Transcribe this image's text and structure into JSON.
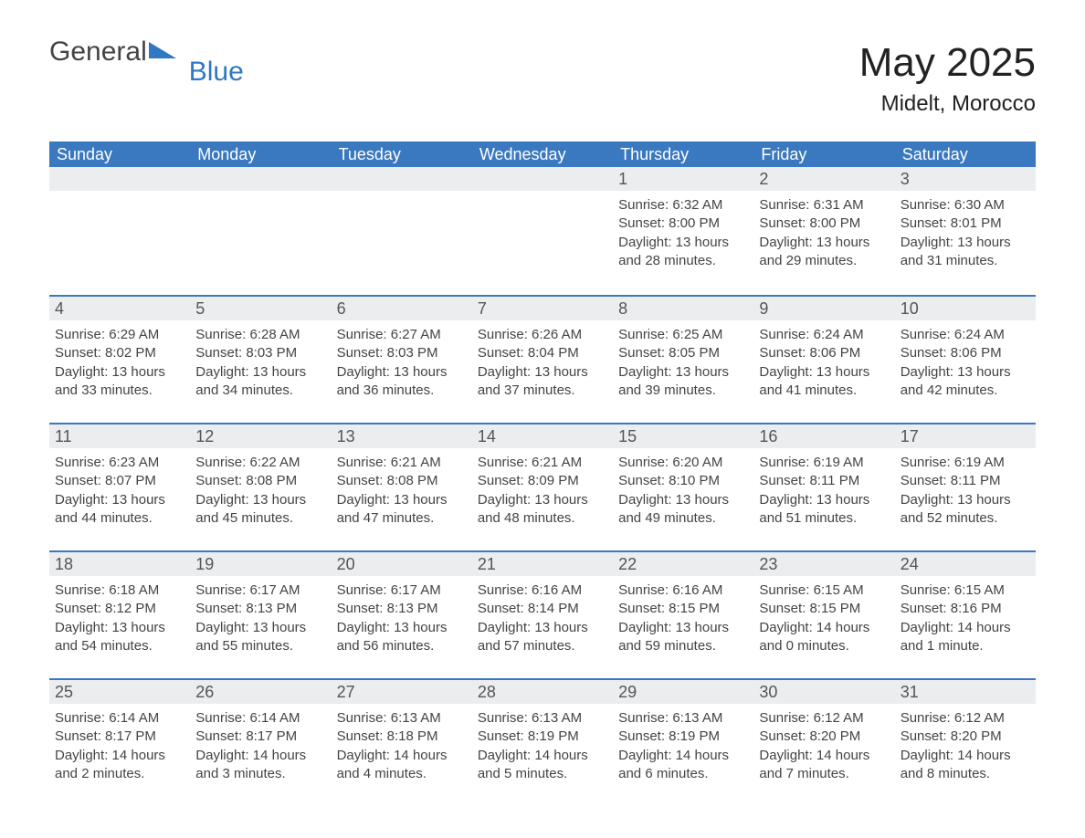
{
  "logo": {
    "part1": "General",
    "part2": "Blue",
    "color_brand": "#2f78c4"
  },
  "title": {
    "month": "May 2025",
    "location": "Midelt, Morocco"
  },
  "calendar": {
    "header_bg": "#3a78bf",
    "header_fg": "#ffffff",
    "row_border": "#3a78bf",
    "daybar_bg": "#ecedef",
    "text_color": "#444444",
    "days_of_week": [
      "Sunday",
      "Monday",
      "Tuesday",
      "Wednesday",
      "Thursday",
      "Friday",
      "Saturday"
    ],
    "weeks": [
      [
        {
          "pad": true
        },
        {
          "pad": true
        },
        {
          "pad": true
        },
        {
          "pad": true
        },
        {
          "num": "1",
          "sunrise": "Sunrise: 6:32 AM",
          "sunset": "Sunset: 8:00 PM",
          "daylight": "Daylight: 13 hours and 28 minutes."
        },
        {
          "num": "2",
          "sunrise": "Sunrise: 6:31 AM",
          "sunset": "Sunset: 8:00 PM",
          "daylight": "Daylight: 13 hours and 29 minutes."
        },
        {
          "num": "3",
          "sunrise": "Sunrise: 6:30 AM",
          "sunset": "Sunset: 8:01 PM",
          "daylight": "Daylight: 13 hours and 31 minutes."
        }
      ],
      [
        {
          "num": "4",
          "sunrise": "Sunrise: 6:29 AM",
          "sunset": "Sunset: 8:02 PM",
          "daylight": "Daylight: 13 hours and 33 minutes."
        },
        {
          "num": "5",
          "sunrise": "Sunrise: 6:28 AM",
          "sunset": "Sunset: 8:03 PM",
          "daylight": "Daylight: 13 hours and 34 minutes."
        },
        {
          "num": "6",
          "sunrise": "Sunrise: 6:27 AM",
          "sunset": "Sunset: 8:03 PM",
          "daylight": "Daylight: 13 hours and 36 minutes."
        },
        {
          "num": "7",
          "sunrise": "Sunrise: 6:26 AM",
          "sunset": "Sunset: 8:04 PM",
          "daylight": "Daylight: 13 hours and 37 minutes."
        },
        {
          "num": "8",
          "sunrise": "Sunrise: 6:25 AM",
          "sunset": "Sunset: 8:05 PM",
          "daylight": "Daylight: 13 hours and 39 minutes."
        },
        {
          "num": "9",
          "sunrise": "Sunrise: 6:24 AM",
          "sunset": "Sunset: 8:06 PM",
          "daylight": "Daylight: 13 hours and 41 minutes."
        },
        {
          "num": "10",
          "sunrise": "Sunrise: 6:24 AM",
          "sunset": "Sunset: 8:06 PM",
          "daylight": "Daylight: 13 hours and 42 minutes."
        }
      ],
      [
        {
          "num": "11",
          "sunrise": "Sunrise: 6:23 AM",
          "sunset": "Sunset: 8:07 PM",
          "daylight": "Daylight: 13 hours and 44 minutes."
        },
        {
          "num": "12",
          "sunrise": "Sunrise: 6:22 AM",
          "sunset": "Sunset: 8:08 PM",
          "daylight": "Daylight: 13 hours and 45 minutes."
        },
        {
          "num": "13",
          "sunrise": "Sunrise: 6:21 AM",
          "sunset": "Sunset: 8:08 PM",
          "daylight": "Daylight: 13 hours and 47 minutes."
        },
        {
          "num": "14",
          "sunrise": "Sunrise: 6:21 AM",
          "sunset": "Sunset: 8:09 PM",
          "daylight": "Daylight: 13 hours and 48 minutes."
        },
        {
          "num": "15",
          "sunrise": "Sunrise: 6:20 AM",
          "sunset": "Sunset: 8:10 PM",
          "daylight": "Daylight: 13 hours and 49 minutes."
        },
        {
          "num": "16",
          "sunrise": "Sunrise: 6:19 AM",
          "sunset": "Sunset: 8:11 PM",
          "daylight": "Daylight: 13 hours and 51 minutes."
        },
        {
          "num": "17",
          "sunrise": "Sunrise: 6:19 AM",
          "sunset": "Sunset: 8:11 PM",
          "daylight": "Daylight: 13 hours and 52 minutes."
        }
      ],
      [
        {
          "num": "18",
          "sunrise": "Sunrise: 6:18 AM",
          "sunset": "Sunset: 8:12 PM",
          "daylight": "Daylight: 13 hours and 54 minutes."
        },
        {
          "num": "19",
          "sunrise": "Sunrise: 6:17 AM",
          "sunset": "Sunset: 8:13 PM",
          "daylight": "Daylight: 13 hours and 55 minutes."
        },
        {
          "num": "20",
          "sunrise": "Sunrise: 6:17 AM",
          "sunset": "Sunset: 8:13 PM",
          "daylight": "Daylight: 13 hours and 56 minutes."
        },
        {
          "num": "21",
          "sunrise": "Sunrise: 6:16 AM",
          "sunset": "Sunset: 8:14 PM",
          "daylight": "Daylight: 13 hours and 57 minutes."
        },
        {
          "num": "22",
          "sunrise": "Sunrise: 6:16 AM",
          "sunset": "Sunset: 8:15 PM",
          "daylight": "Daylight: 13 hours and 59 minutes."
        },
        {
          "num": "23",
          "sunrise": "Sunrise: 6:15 AM",
          "sunset": "Sunset: 8:15 PM",
          "daylight": "Daylight: 14 hours and 0 minutes."
        },
        {
          "num": "24",
          "sunrise": "Sunrise: 6:15 AM",
          "sunset": "Sunset: 8:16 PM",
          "daylight": "Daylight: 14 hours and 1 minute."
        }
      ],
      [
        {
          "num": "25",
          "sunrise": "Sunrise: 6:14 AM",
          "sunset": "Sunset: 8:17 PM",
          "daylight": "Daylight: 14 hours and 2 minutes."
        },
        {
          "num": "26",
          "sunrise": "Sunrise: 6:14 AM",
          "sunset": "Sunset: 8:17 PM",
          "daylight": "Daylight: 14 hours and 3 minutes."
        },
        {
          "num": "27",
          "sunrise": "Sunrise: 6:13 AM",
          "sunset": "Sunset: 8:18 PM",
          "daylight": "Daylight: 14 hours and 4 minutes."
        },
        {
          "num": "28",
          "sunrise": "Sunrise: 6:13 AM",
          "sunset": "Sunset: 8:19 PM",
          "daylight": "Daylight: 14 hours and 5 minutes."
        },
        {
          "num": "29",
          "sunrise": "Sunrise: 6:13 AM",
          "sunset": "Sunset: 8:19 PM",
          "daylight": "Daylight: 14 hours and 6 minutes."
        },
        {
          "num": "30",
          "sunrise": "Sunrise: 6:12 AM",
          "sunset": "Sunset: 8:20 PM",
          "daylight": "Daylight: 14 hours and 7 minutes."
        },
        {
          "num": "31",
          "sunrise": "Sunrise: 6:12 AM",
          "sunset": "Sunset: 8:20 PM",
          "daylight": "Daylight: 14 hours and 8 minutes."
        }
      ]
    ]
  }
}
